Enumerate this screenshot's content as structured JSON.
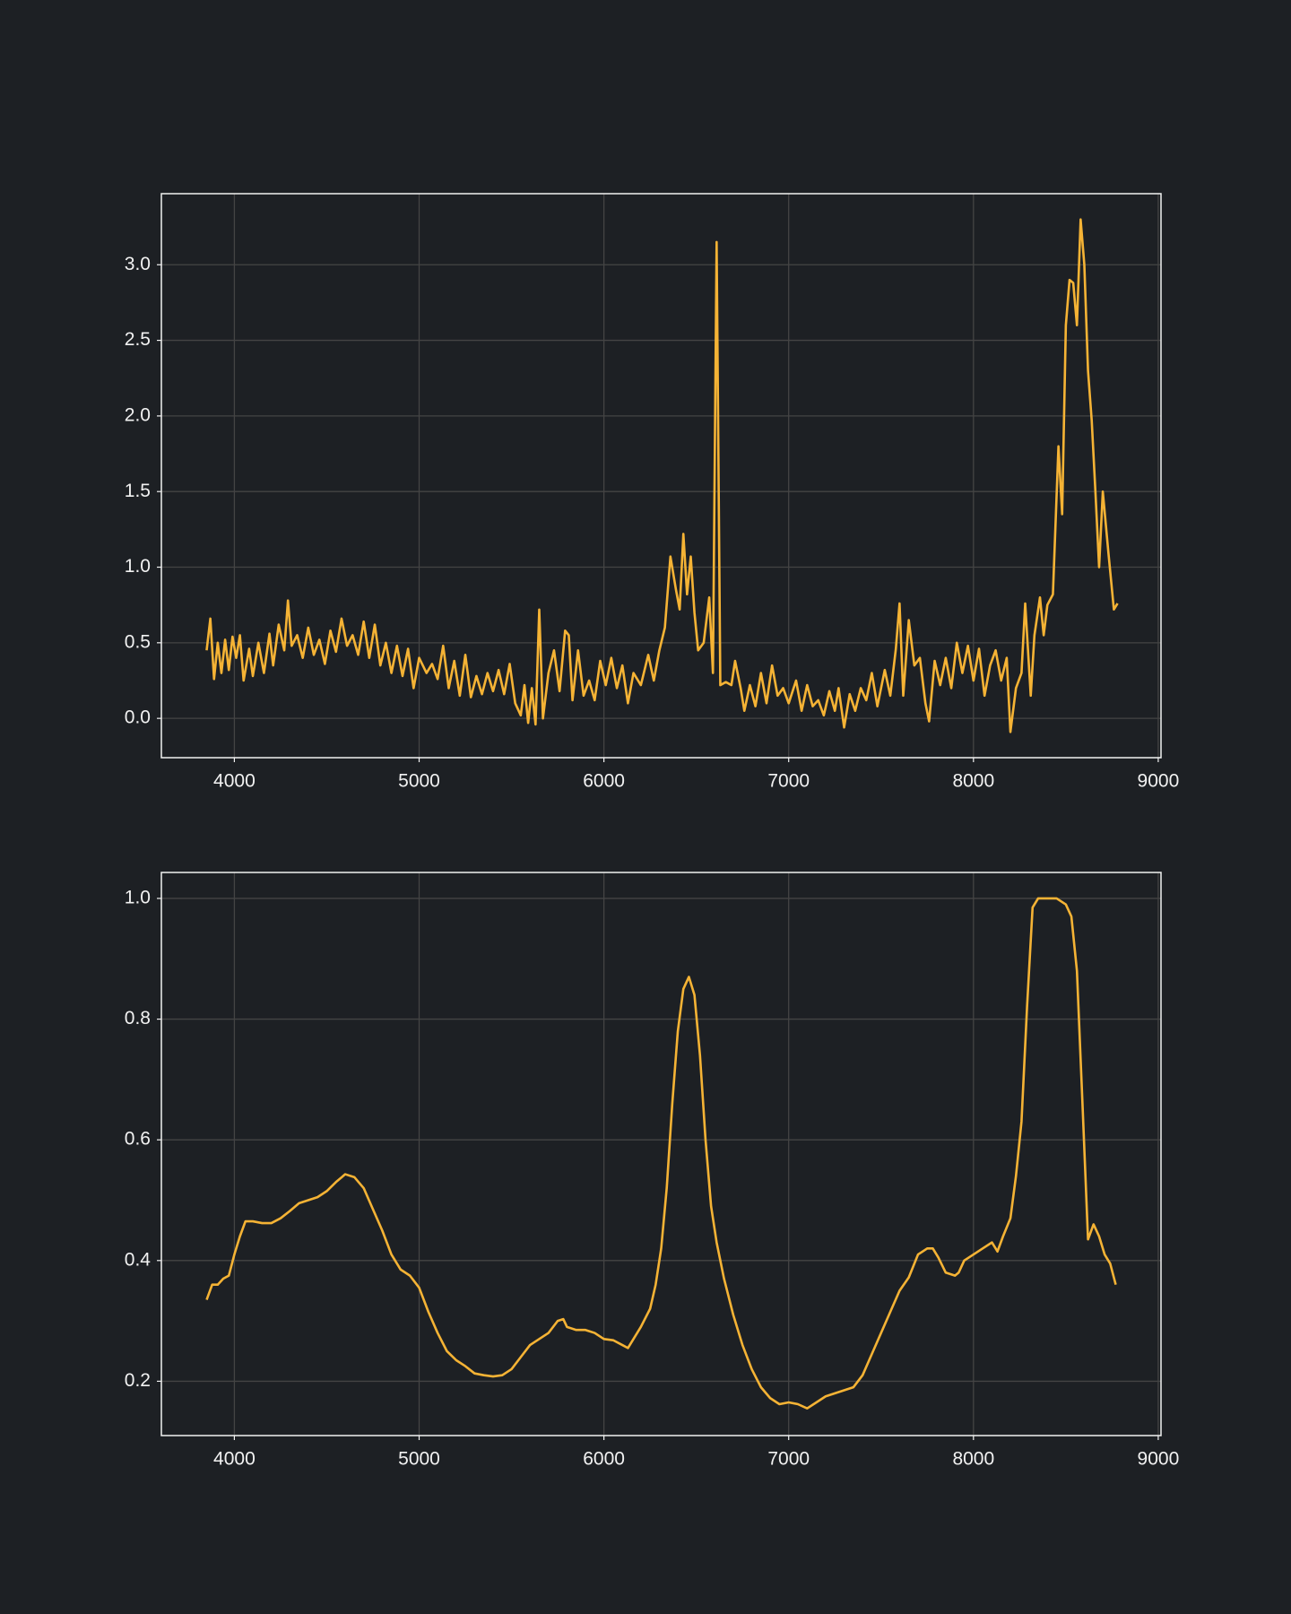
{
  "chart_data": [
    {
      "type": "line",
      "color": "#f5b335",
      "grid": true,
      "xlim": [
        3605,
        9015
      ],
      "ylim": [
        -0.26,
        3.47
      ],
      "xticks": [
        4000,
        5000,
        6000,
        7000,
        8000,
        9000
      ],
      "yticks": [
        {
          "value": 0,
          "label": "0.0"
        },
        0.5,
        {
          "value": 1,
          "label": "1.0"
        },
        1.5,
        {
          "value": 2,
          "label": "2.0"
        },
        2.5,
        {
          "value": 3,
          "label": "3.0"
        }
      ],
      "x": [
        3850,
        3870,
        3890,
        3910,
        3930,
        3950,
        3970,
        3990,
        4010,
        4030,
        4050,
        4080,
        4100,
        4130,
        4160,
        4190,
        4210,
        4240,
        4270,
        4290,
        4310,
        4340,
        4370,
        4400,
        4430,
        4460,
        4490,
        4520,
        4550,
        4580,
        4610,
        4640,
        4670,
        4700,
        4730,
        4760,
        4790,
        4820,
        4850,
        4880,
        4910,
        4940,
        4970,
        5000,
        5040,
        5070,
        5100,
        5130,
        5160,
        5190,
        5220,
        5250,
        5280,
        5310,
        5340,
        5370,
        5400,
        5430,
        5460,
        5490,
        5520,
        5550,
        5570,
        5590,
        5610,
        5630,
        5650,
        5670,
        5700,
        5730,
        5760,
        5790,
        5810,
        5830,
        5860,
        5890,
        5920,
        5950,
        5980,
        6010,
        6040,
        6070,
        6100,
        6130,
        6160,
        6200,
        6240,
        6270,
        6300,
        6330,
        6360,
        6390,
        6410,
        6430,
        6450,
        6470,
        6490,
        6510,
        6540,
        6570,
        6590,
        6610,
        6630,
        6660,
        6690,
        6710,
        6740,
        6760,
        6790,
        6820,
        6850,
        6880,
        6910,
        6940,
        6970,
        7000,
        7040,
        7070,
        7100,
        7130,
        7160,
        7190,
        7220,
        7250,
        7270,
        7300,
        7330,
        7360,
        7390,
        7420,
        7450,
        7480,
        7520,
        7550,
        7580,
        7600,
        7620,
        7650,
        7680,
        7710,
        7740,
        7760,
        7790,
        7820,
        7850,
        7880,
        7910,
        7940,
        7970,
        8000,
        8030,
        8060,
        8090,
        8120,
        8150,
        8180,
        8200,
        8230,
        8260,
        8280,
        8310,
        8330,
        8360,
        8380,
        8400,
        8430,
        8460,
        8480,
        8500,
        8520,
        8540,
        8560,
        8580,
        8600,
        8620,
        8640,
        8660,
        8680,
        8700,
        8730,
        8760,
        8780
      ],
      "values": [
        0.45,
        0.66,
        0.26,
        0.5,
        0.3,
        0.52,
        0.32,
        0.54,
        0.4,
        0.55,
        0.25,
        0.46,
        0.28,
        0.5,
        0.3,
        0.56,
        0.35,
        0.62,
        0.45,
        0.78,
        0.48,
        0.55,
        0.4,
        0.6,
        0.42,
        0.52,
        0.36,
        0.58,
        0.44,
        0.66,
        0.48,
        0.55,
        0.42,
        0.64,
        0.4,
        0.62,
        0.35,
        0.5,
        0.3,
        0.48,
        0.28,
        0.46,
        0.2,
        0.4,
        0.3,
        0.36,
        0.26,
        0.48,
        0.2,
        0.38,
        0.15,
        0.42,
        0.14,
        0.28,
        0.16,
        0.3,
        0.18,
        0.32,
        0.16,
        0.36,
        0.1,
        0.02,
        0.22,
        -0.03,
        0.2,
        -0.04,
        0.72,
        0.0,
        0.3,
        0.45,
        0.18,
        0.58,
        0.55,
        0.12,
        0.45,
        0.15,
        0.25,
        0.12,
        0.38,
        0.22,
        0.4,
        0.2,
        0.35,
        0.1,
        0.3,
        0.22,
        0.42,
        0.25,
        0.45,
        0.6,
        1.07,
        0.85,
        0.72,
        1.22,
        0.82,
        1.07,
        0.7,
        0.45,
        0.5,
        0.8,
        0.3,
        3.15,
        0.22,
        0.24,
        0.22,
        0.38,
        0.2,
        0.05,
        0.22,
        0.08,
        0.3,
        0.1,
        0.35,
        0.15,
        0.2,
        0.1,
        0.25,
        0.05,
        0.22,
        0.08,
        0.12,
        0.02,
        0.18,
        0.05,
        0.2,
        -0.06,
        0.16,
        0.05,
        0.2,
        0.12,
        0.3,
        0.08,
        0.32,
        0.15,
        0.46,
        0.76,
        0.15,
        0.65,
        0.35,
        0.4,
        0.1,
        -0.02,
        0.38,
        0.22,
        0.4,
        0.2,
        0.5,
        0.3,
        0.48,
        0.25,
        0.46,
        0.15,
        0.35,
        0.45,
        0.25,
        0.4,
        -0.09,
        0.2,
        0.3,
        0.76,
        0.15,
        0.55,
        0.8,
        0.55,
        0.75,
        0.82,
        1.8,
        1.35,
        2.6,
        2.9,
        2.88,
        2.6,
        3.3,
        3.0,
        2.3,
        1.97,
        1.5,
        1.0,
        1.5,
        1.1,
        0.72,
        0.76
      ]
    },
    {
      "type": "line",
      "color": "#f5b335",
      "grid": true,
      "xlim": [
        3605,
        9015
      ],
      "ylim": [
        0.11,
        1.043
      ],
      "xticks": [
        4000,
        5000,
        6000,
        7000,
        8000,
        9000
      ],
      "yticks": [
        0.2,
        0.4,
        0.6,
        0.8,
        {
          "value": 1,
          "label": "1.0"
        }
      ],
      "x": [
        3850,
        3880,
        3910,
        3940,
        3970,
        4000,
        4030,
        4060,
        4100,
        4150,
        4200,
        4250,
        4300,
        4350,
        4400,
        4450,
        4500,
        4550,
        4600,
        4650,
        4700,
        4750,
        4800,
        4850,
        4900,
        4950,
        5000,
        5050,
        5100,
        5150,
        5200,
        5250,
        5300,
        5350,
        5400,
        5450,
        5500,
        5550,
        5600,
        5650,
        5700,
        5750,
        5780,
        5800,
        5850,
        5900,
        5950,
        6000,
        6050,
        6100,
        6130,
        6160,
        6200,
        6250,
        6280,
        6310,
        6340,
        6370,
        6400,
        6430,
        6460,
        6490,
        6520,
        6550,
        6580,
        6610,
        6650,
        6700,
        6750,
        6800,
        6850,
        6900,
        6950,
        7000,
        7050,
        7100,
        7150,
        7200,
        7250,
        7300,
        7350,
        7400,
        7450,
        7500,
        7550,
        7600,
        7650,
        7700,
        7750,
        7780,
        7810,
        7850,
        7900,
        7920,
        7950,
        8000,
        8050,
        8100,
        8130,
        8160,
        8200,
        8230,
        8260,
        8290,
        8320,
        8350,
        8400,
        8450,
        8500,
        8530,
        8560,
        8590,
        8620,
        8650,
        8680,
        8710,
        8740,
        8770
      ],
      "values": [
        0.335,
        0.36,
        0.36,
        0.37,
        0.375,
        0.41,
        0.44,
        0.465,
        0.465,
        0.462,
        0.462,
        0.47,
        0.482,
        0.495,
        0.5,
        0.505,
        0.515,
        0.53,
        0.543,
        0.538,
        0.52,
        0.485,
        0.45,
        0.41,
        0.385,
        0.375,
        0.355,
        0.315,
        0.28,
        0.25,
        0.235,
        0.225,
        0.213,
        0.21,
        0.208,
        0.21,
        0.22,
        0.24,
        0.26,
        0.27,
        0.28,
        0.3,
        0.303,
        0.29,
        0.285,
        0.285,
        0.28,
        0.27,
        0.268,
        0.26,
        0.255,
        0.27,
        0.29,
        0.32,
        0.36,
        0.42,
        0.52,
        0.66,
        0.78,
        0.85,
        0.87,
        0.84,
        0.74,
        0.6,
        0.49,
        0.43,
        0.37,
        0.31,
        0.26,
        0.22,
        0.19,
        0.172,
        0.162,
        0.165,
        0.162,
        0.155,
        0.165,
        0.175,
        0.18,
        0.185,
        0.19,
        0.21,
        0.245,
        0.28,
        0.315,
        0.35,
        0.372,
        0.41,
        0.42,
        0.42,
        0.405,
        0.38,
        0.375,
        0.38,
        0.4,
        0.41,
        0.42,
        0.43,
        0.415,
        0.44,
        0.47,
        0.54,
        0.63,
        0.82,
        0.985,
        1.0,
        1.0,
        1.0,
        0.99,
        0.97,
        0.88,
        0.66,
        0.435,
        0.46,
        0.44,
        0.41,
        0.395,
        0.36
      ]
    }
  ]
}
